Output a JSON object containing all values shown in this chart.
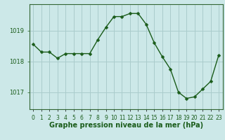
{
  "x": [
    0,
    1,
    2,
    3,
    4,
    5,
    6,
    7,
    8,
    9,
    10,
    11,
    12,
    13,
    14,
    15,
    16,
    17,
    18,
    19,
    20,
    21,
    22,
    23
  ],
  "y": [
    1018.55,
    1018.3,
    1018.3,
    1018.1,
    1018.25,
    1018.25,
    1018.25,
    1018.25,
    1018.7,
    1019.1,
    1019.45,
    1019.45,
    1019.55,
    1019.55,
    1019.2,
    1018.6,
    1018.15,
    1017.75,
    1017.0,
    1016.8,
    1016.85,
    1017.1,
    1017.35,
    1018.2
  ],
  "line_color": "#1a5c1a",
  "marker_color": "#1a5c1a",
  "bg_color": "#cce8e8",
  "grid_color": "#aacccc",
  "tick_label_color": "#1a5c1a",
  "xlabel": "Graphe pression niveau de la mer (hPa)",
  "xlabel_color": "#1a5c1a",
  "yticks": [
    1017,
    1018,
    1019
  ],
  "ylim": [
    1016.45,
    1019.85
  ],
  "xlim": [
    -0.5,
    23.5
  ],
  "label_fontsize": 7.0,
  "tick_fontsize": 6.0,
  "marker_size": 2.5,
  "linewidth": 1.0
}
